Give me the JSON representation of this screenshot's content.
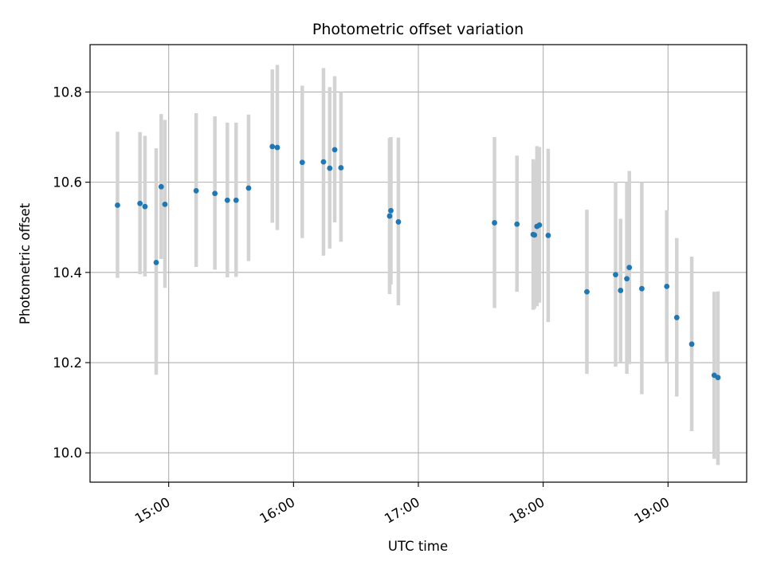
{
  "chart_data": {
    "type": "scatter",
    "title": "Photometric offset variation",
    "xlabel": "UTC time",
    "ylabel": "Photometric offset",
    "xlim_hours": [
      14.37,
      19.63
    ],
    "ylim": [
      9.935,
      10.905
    ],
    "xticks": [
      {
        "hour": 15,
        "label": "15:00"
      },
      {
        "hour": 16,
        "label": "16:00"
      },
      {
        "hour": 17,
        "label": "17:00"
      },
      {
        "hour": 18,
        "label": "18:00"
      },
      {
        "hour": 19,
        "label": "19:00"
      }
    ],
    "yticks": [
      {
        "value": 10.0,
        "label": "10.0"
      },
      {
        "value": 10.2,
        "label": "10.2"
      },
      {
        "value": 10.4,
        "label": "10.4"
      },
      {
        "value": 10.6,
        "label": "10.6"
      },
      {
        "value": 10.8,
        "label": "10.8"
      }
    ],
    "grid": true,
    "point_color": "#1f77b4",
    "errorbar_color": "#d3d3d3",
    "points": [
      {
        "hour": 14.59,
        "y": 10.549,
        "lo": 10.388,
        "hi": 10.712
      },
      {
        "hour": 14.77,
        "y": 10.553,
        "lo": 10.396,
        "hi": 10.711
      },
      {
        "hour": 14.81,
        "y": 10.546,
        "lo": 10.391,
        "hi": 10.703
      },
      {
        "hour": 14.9,
        "y": 10.422,
        "lo": 10.173,
        "hi": 10.675
      },
      {
        "hour": 14.94,
        "y": 10.59,
        "lo": 10.43,
        "hi": 10.751
      },
      {
        "hour": 14.97,
        "y": 10.551,
        "lo": 10.366,
        "hi": 10.738
      },
      {
        "hour": 15.22,
        "y": 10.581,
        "lo": 10.412,
        "hi": 10.753
      },
      {
        "hour": 15.37,
        "y": 10.575,
        "lo": 10.406,
        "hi": 10.746
      },
      {
        "hour": 15.47,
        "y": 10.56,
        "lo": 10.389,
        "hi": 10.732
      },
      {
        "hour": 15.54,
        "y": 10.56,
        "lo": 10.39,
        "hi": 10.732
      },
      {
        "hour": 15.64,
        "y": 10.587,
        "lo": 10.425,
        "hi": 10.75
      },
      {
        "hour": 15.83,
        "y": 10.679,
        "lo": 10.51,
        "hi": 10.85
      },
      {
        "hour": 15.87,
        "y": 10.677,
        "lo": 10.494,
        "hi": 10.86
      },
      {
        "hour": 16.07,
        "y": 10.644,
        "lo": 10.476,
        "hi": 10.814
      },
      {
        "hour": 16.24,
        "y": 10.645,
        "lo": 10.437,
        "hi": 10.853
      },
      {
        "hour": 16.29,
        "y": 10.631,
        "lo": 10.453,
        "hi": 10.811
      },
      {
        "hour": 16.33,
        "y": 10.672,
        "lo": 10.511,
        "hi": 10.835
      },
      {
        "hour": 16.38,
        "y": 10.632,
        "lo": 10.468,
        "hi": 10.8
      },
      {
        "hour": 16.77,
        "y": 10.525,
        "lo": 10.352,
        "hi": 10.698
      },
      {
        "hour": 16.78,
        "y": 10.537,
        "lo": 10.373,
        "hi": 10.7
      },
      {
        "hour": 16.84,
        "y": 10.512,
        "lo": 10.327,
        "hi": 10.699
      },
      {
        "hour": 17.61,
        "y": 10.51,
        "lo": 10.321,
        "hi": 10.7
      },
      {
        "hour": 17.79,
        "y": 10.507,
        "lo": 10.357,
        "hi": 10.659
      },
      {
        "hour": 17.92,
        "y": 10.484,
        "lo": 10.317,
        "hi": 10.651
      },
      {
        "hour": 17.93,
        "y": 10.483,
        "lo": 10.32,
        "hi": 10.647
      },
      {
        "hour": 17.95,
        "y": 10.502,
        "lo": 10.325,
        "hi": 10.68
      },
      {
        "hour": 17.97,
        "y": 10.505,
        "lo": 10.333,
        "hi": 10.678
      },
      {
        "hour": 18.04,
        "y": 10.482,
        "lo": 10.29,
        "hi": 10.674
      },
      {
        "hour": 18.35,
        "y": 10.357,
        "lo": 10.175,
        "hi": 10.539
      },
      {
        "hour": 18.58,
        "y": 10.395,
        "lo": 10.191,
        "hi": 10.601
      },
      {
        "hour": 18.62,
        "y": 10.36,
        "lo": 10.2,
        "hi": 10.519
      },
      {
        "hour": 18.67,
        "y": 10.386,
        "lo": 10.175,
        "hi": 10.6
      },
      {
        "hour": 18.69,
        "y": 10.411,
        "lo": 10.197,
        "hi": 10.625
      },
      {
        "hour": 18.79,
        "y": 10.364,
        "lo": 10.13,
        "hi": 10.6
      },
      {
        "hour": 18.99,
        "y": 10.369,
        "lo": 10.2,
        "hi": 10.538
      },
      {
        "hour": 19.07,
        "y": 10.3,
        "lo": 10.125,
        "hi": 10.476
      },
      {
        "hour": 19.19,
        "y": 10.241,
        "lo": 10.048,
        "hi": 10.435
      },
      {
        "hour": 19.37,
        "y": 10.172,
        "lo": 9.987,
        "hi": 10.357
      },
      {
        "hour": 19.4,
        "y": 10.167,
        "lo": 9.973,
        "hi": 10.358
      }
    ]
  }
}
